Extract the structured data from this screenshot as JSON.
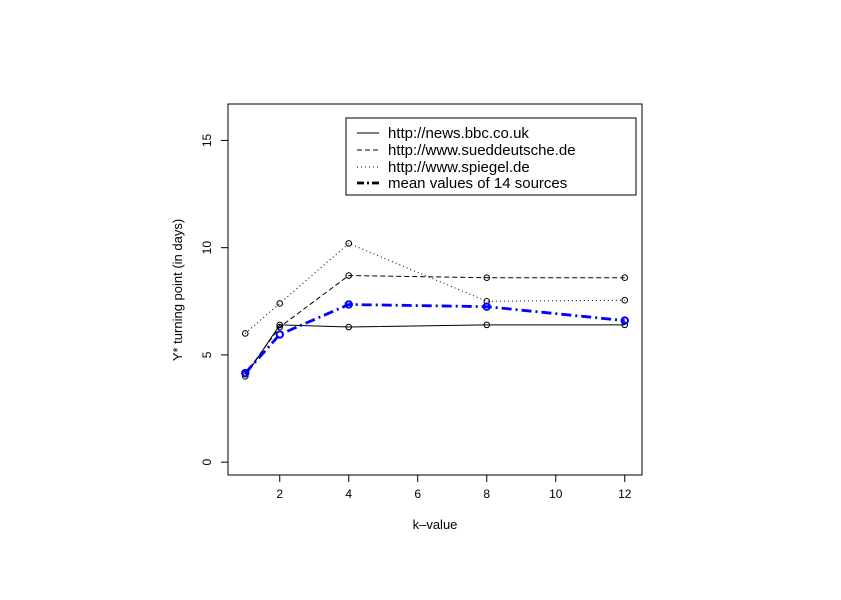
{
  "chart_data": {
    "type": "line",
    "title": "",
    "xlabel": "k–value",
    "ylabel": "Y* turning point (in days)",
    "xlim": [
      0.5,
      12.5
    ],
    "ylim": [
      -0.6,
      16.7
    ],
    "x_ticks": [
      2,
      4,
      6,
      8,
      10,
      12
    ],
    "y_ticks": [
      0,
      5,
      10,
      15
    ],
    "x": [
      1,
      2,
      4,
      8,
      12
    ],
    "grid": false,
    "legend_position": "top-right",
    "series": [
      {
        "name": "http://news.bbc.co.uk",
        "values": [
          4.0,
          6.4,
          6.3,
          6.4,
          6.4
        ],
        "color": "#000000",
        "line_style": "solid",
        "marker": "open-circle"
      },
      {
        "name": "http://www.sueddeutsche.de",
        "values": [
          4.1,
          6.3,
          8.7,
          8.6,
          8.6
        ],
        "color": "#000000",
        "line_style": "dashed",
        "marker": "open-circle"
      },
      {
        "name": "http://www.spiegel.de",
        "values": [
          6.0,
          7.4,
          10.2,
          7.5,
          7.55
        ],
        "color": "#000000",
        "line_style": "dotted",
        "marker": "open-circle"
      },
      {
        "name": "mean values of 14 sources",
        "values": [
          4.15,
          5.95,
          7.35,
          7.25,
          6.6
        ],
        "color": "#0000ff",
        "line_style": "dash-dot",
        "marker": "open-circle",
        "bold": true
      }
    ]
  }
}
